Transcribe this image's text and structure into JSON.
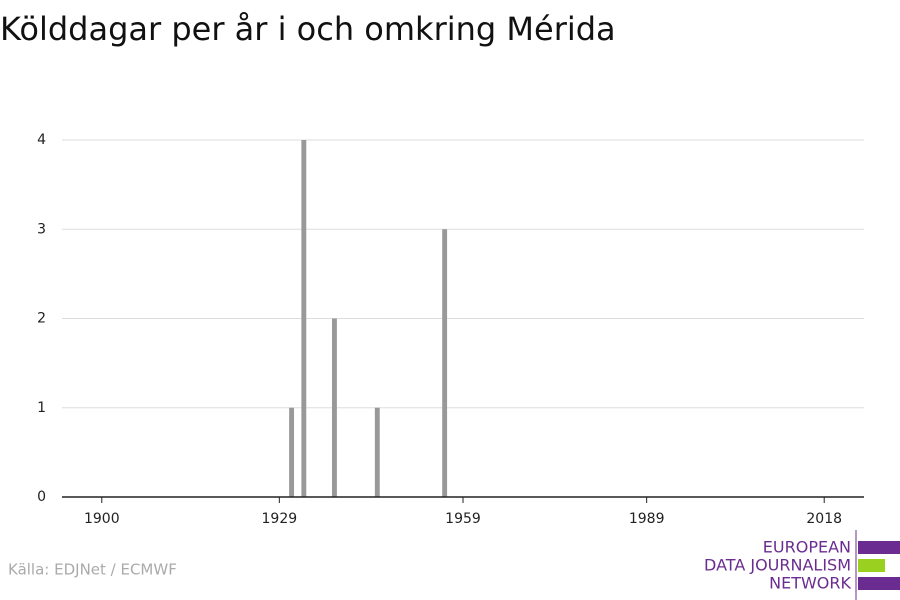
{
  "chart_data": {
    "type": "bar",
    "title": "Kölddagar per år i och omkring Mérida",
    "x": [
      1931,
      1933,
      1938,
      1945,
      1956
    ],
    "values": [
      1,
      4,
      2,
      1,
      3
    ],
    "color": "#999999",
    "xlim": [
      1893.5,
      2024.5
    ],
    "xticks": [
      1900,
      1929,
      1959,
      1989,
      2018
    ],
    "ylim": [
      0,
      4
    ],
    "yticks": [
      0,
      1,
      2,
      3,
      4
    ],
    "grid": true,
    "source": "Källa: EDJNet / ECMWF",
    "logo": [
      "EUROPEAN",
      "DATA JOURNALISM",
      "NETWORK"
    ]
  }
}
